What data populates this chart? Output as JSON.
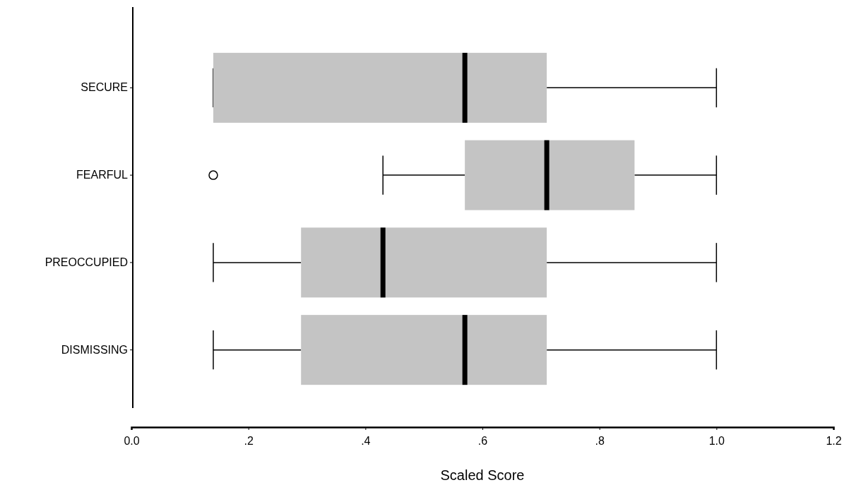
{
  "chart_data": {
    "type": "box",
    "orientation": "horizontal",
    "xlabel": "Scaled Score",
    "categories": [
      "SECURE",
      "FEARFUL",
      "PREOCCUPIED",
      "DISMISSING"
    ],
    "boxes": [
      {
        "low": 0.14,
        "q1": 0.14,
        "median": 0.57,
        "q3": 0.71,
        "high": 1.0
      },
      {
        "low": 0.43,
        "q1": 0.57,
        "median": 0.71,
        "q3": 0.86,
        "high": 1.0,
        "outliers": [
          0.14
        ]
      },
      {
        "low": 0.14,
        "q1": 0.29,
        "median": 0.43,
        "q3": 0.71,
        "high": 1.0
      },
      {
        "low": 0.14,
        "q1": 0.29,
        "median": 0.57,
        "q3": 0.71,
        "high": 1.0
      }
    ],
    "color": "#c4c4c4",
    "xlim": [
      0,
      1.2
    ],
    "xticks": [
      {
        "value": 0,
        "label": "0.0"
      },
      {
        "value": 0.2,
        "label": ".2"
      },
      {
        "value": 0.4,
        "label": ".4"
      },
      {
        "value": 0.6,
        "label": ".6"
      },
      {
        "value": 0.8,
        "label": ".8"
      },
      {
        "value": 1.0,
        "label": "1.0"
      },
      {
        "value": 1.2,
        "label": "1.2"
      }
    ],
    "grid": false
  }
}
